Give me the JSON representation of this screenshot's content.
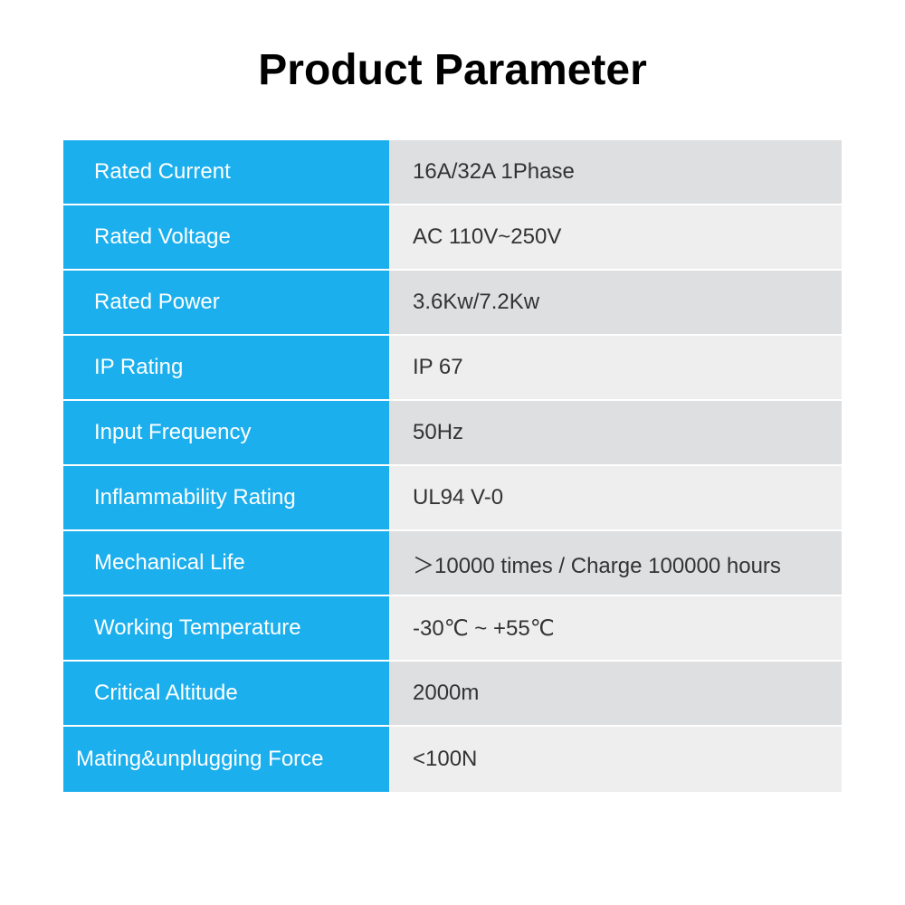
{
  "title": "Product Parameter",
  "table": {
    "type": "table",
    "label_bg_color": "#1cafed",
    "label_text_color": "#ffffff",
    "value_bg_odd": "#dedfe1",
    "value_bg_even": "#eeeeee",
    "value_text_color": "#333333",
    "row_separator_color": "#ffffff",
    "label_fontsize": 24,
    "value_fontsize": 24,
    "title_fontsize": 48,
    "title_color": "#000000",
    "rows": [
      {
        "label": "Rated Current",
        "value": "16A/32A 1Phase"
      },
      {
        "label": "Rated Voltage",
        "value": "AC 110V~250V"
      },
      {
        "label": "Rated Power",
        "value": "3.6Kw/7.2Kw"
      },
      {
        "label": "IP Rating",
        "value": "IP 67"
      },
      {
        "label": "Input Frequency",
        "value": "50Hz"
      },
      {
        "label": "Inflammability Rating",
        "value": "UL94 V-0"
      },
      {
        "label": "Mechanical Life",
        "value": "＞10000 times / Charge 100000 hours"
      },
      {
        "label": "Working Temperature",
        "value": "-30℃ ~ +55℃"
      },
      {
        "label": "Critical Altitude",
        "value": "2000m"
      },
      {
        "label": "Mating&unplugging Force",
        "value": "<100N"
      }
    ]
  }
}
